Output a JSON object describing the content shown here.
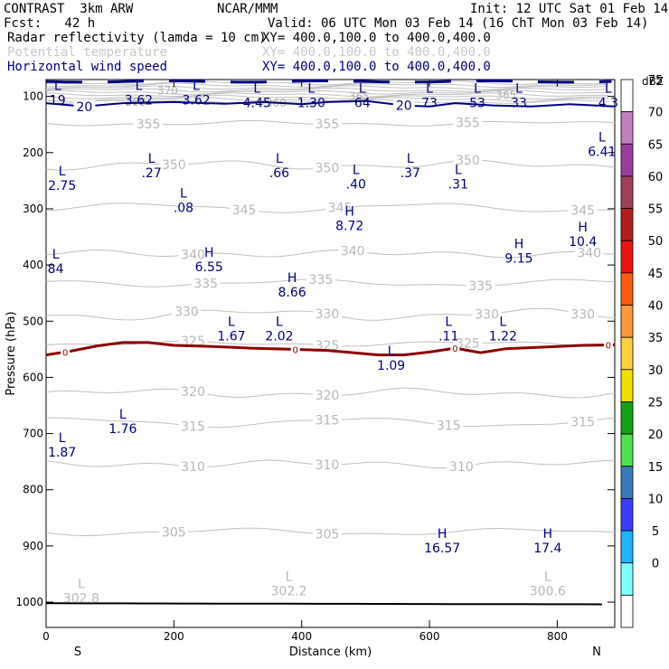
{
  "header": {
    "model": "CONTRAST  3km ARW",
    "center": "NCAR/MMM",
    "init": "Init: 12 UTC Sat 01 Feb 14",
    "fcst": "Fcst:   42 h",
    "valid": "Valid: 06 UTC Mon 03 Feb 14 (16 ChT Mon 03 Feb 14)",
    "fields": [
      {
        "name": "Radar reflectivity (lamda = 10 cm)",
        "xy": "XY= 400.0,100.0 to 400.0,400.0",
        "color": "#000000"
      },
      {
        "name": "Potential temperature",
        "xy": "XY= 400.0,100.0 to 400.0,400.0",
        "color": "#c8c8c8"
      },
      {
        "name": "Horizontal wind speed",
        "xy": "XY= 400.0,100.0 to 400.0,400.0",
        "color": "#000080"
      }
    ]
  },
  "chart_data": {
    "type": "cross-section",
    "xlabel": "Distance (km)",
    "ylabel": "Pressure (hPa)",
    "xlim": [
      0,
      890
    ],
    "ylim": [
      1045,
      70
    ],
    "xticks": [
      0,
      200,
      400,
      600,
      800
    ],
    "yticks": [
      100,
      200,
      300,
      400,
      500,
      600,
      700,
      800,
      900,
      1000
    ],
    "end_labels": {
      "left": "S",
      "right": "N"
    },
    "colorbar": {
      "unit": "dBZ",
      "levels": [
        {
          "value": "75",
          "color": "#ffffff"
        },
        {
          "value": "70",
          "color": "#c080c0"
        },
        {
          "value": "65",
          "color": "#9a3fa0"
        },
        {
          "value": "60",
          "color": "#a0405a"
        },
        {
          "value": "55",
          "color": "#b01e1e"
        },
        {
          "value": "50",
          "color": "#e81414"
        },
        {
          "value": "45",
          "color": "#ff5a14"
        },
        {
          "value": "40",
          "color": "#ff9a40"
        },
        {
          "value": "35",
          "color": "#ffd040"
        },
        {
          "value": "30",
          "color": "#f0e000"
        },
        {
          "value": "25",
          "color": "#14a014"
        },
        {
          "value": "20",
          "color": "#50e050"
        },
        {
          "value": "15",
          "color": "#3a7ab8"
        },
        {
          "value": "10",
          "color": "#3c3cff"
        },
        {
          "value": "5",
          "color": "#1eb4ff"
        },
        {
          "value": "0",
          "color": "#80ffff"
        },
        {
          "value": "",
          "color": "#ffffff"
        }
      ]
    },
    "theta_contours": [
      {
        "label": "355",
        "pressure": 148,
        "label_x": [
          160,
          440,
          660
        ]
      },
      {
        "label": "350",
        "pressure": 222,
        "label_x": [
          200,
          440,
          660
        ]
      },
      {
        "label": "345",
        "pressure": 298,
        "label_x": [
          310,
          460,
          840
        ]
      },
      {
        "label": "340",
        "pressure": 380,
        "label_x": [
          230,
          480,
          850
        ]
      },
      {
        "label": "335",
        "pressure": 432,
        "label_x": [
          250,
          430,
          680
        ]
      },
      {
        "label": "330",
        "pressure": 488,
        "label_x": [
          220,
          440,
          690,
          840
        ]
      },
      {
        "label": "325",
        "pressure": 540,
        "label_x": [
          230,
          440,
          660
        ]
      },
      {
        "label": "320",
        "pressure": 628,
        "label_x": [
          230,
          440
        ]
      },
      {
        "label": "315",
        "pressure": 680,
        "label_x": [
          230,
          440,
          630,
          840
        ]
      },
      {
        "label": "310",
        "pressure": 754,
        "label_x": [
          230,
          440,
          650
        ]
      },
      {
        "label": "305",
        "pressure": 875,
        "label_x": [
          200,
          440
        ]
      }
    ],
    "upper_theta_labels": [
      {
        "label": "360",
        "x": 140,
        "pressure": 110
      },
      {
        "label": "360",
        "x": 360,
        "pressure": 112
      },
      {
        "label": "365",
        "x": 490,
        "pressure": 100
      },
      {
        "label": "365",
        "x": 720,
        "pressure": 98
      },
      {
        "label": "370",
        "x": 190,
        "pressure": 90
      }
    ],
    "reflectivity_zero": {
      "label": "0",
      "label_x": [
        30,
        390,
        640,
        880
      ],
      "points": [
        [
          0,
          560
        ],
        [
          40,
          553
        ],
        [
          80,
          544
        ],
        [
          120,
          538
        ],
        [
          160,
          538
        ],
        [
          200,
          543
        ],
        [
          260,
          545
        ],
        [
          320,
          548
        ],
        [
          380,
          550
        ],
        [
          440,
          552
        ],
        [
          480,
          556
        ],
        [
          520,
          560
        ],
        [
          560,
          560
        ],
        [
          600,
          555
        ],
        [
          640,
          548
        ],
        [
          680,
          556
        ],
        [
          720,
          549
        ],
        [
          760,
          547
        ],
        [
          800,
          545
        ],
        [
          840,
          543
        ],
        [
          890,
          542
        ]
      ]
    },
    "wind_20_contour": {
      "label": "20",
      "label_x": [
        60,
        560
      ],
      "points": [
        [
          0,
          112
        ],
        [
          60,
          118
        ],
        [
          120,
          112
        ],
        [
          200,
          110
        ],
        [
          280,
          113
        ],
        [
          340,
          110
        ],
        [
          400,
          114
        ],
        [
          440,
          110
        ],
        [
          500,
          108
        ],
        [
          560,
          116
        ],
        [
          600,
          118
        ],
        [
          640,
          112
        ],
        [
          700,
          116
        ],
        [
          760,
          118
        ],
        [
          820,
          114
        ],
        [
          890,
          118
        ]
      ]
    },
    "extrema": [
      {
        "type": "L",
        "value": "19",
        "x": 18,
        "pressure": 98
      },
      {
        "type": "L",
        "value": "3.62",
        "x": 145,
        "pressure": 98
      },
      {
        "type": "L",
        "value": "3.62",
        "x": 235,
        "pressure": 98
      },
      {
        "type": "L",
        "value": "4.45",
        "x": 330,
        "pressure": 103
      },
      {
        "type": "L",
        "value": "1.30",
        "x": 415,
        "pressure": 103
      },
      {
        "type": "L",
        "value": "64",
        "x": 495,
        "pressure": 103
      },
      {
        "type": "L",
        "value": "73",
        "x": 600,
        "pressure": 103
      },
      {
        "type": "L",
        "value": "53",
        "x": 675,
        "pressure": 103
      },
      {
        "type": "L",
        "value": "33",
        "x": 740,
        "pressure": 103
      },
      {
        "type": "L",
        "value": "4.3",
        "x": 880,
        "pressure": 103
      },
      {
        "type": "L",
        "value": "6.41",
        "x": 870,
        "pressure": 190
      },
      {
        "type": "L",
        "value": "2.75",
        "x": 25,
        "pressure": 250
      },
      {
        "type": "L",
        "value": ".27",
        "x": 165,
        "pressure": 228
      },
      {
        "type": "L",
        "value": ".66",
        "x": 365,
        "pressure": 228
      },
      {
        "type": "L",
        "value": ".40",
        "x": 485,
        "pressure": 248
      },
      {
        "type": "L",
        "value": ".37",
        "x": 570,
        "pressure": 228
      },
      {
        "type": "L",
        "value": ".31",
        "x": 645,
        "pressure": 248
      },
      {
        "type": "L",
        "value": ".08",
        "x": 215,
        "pressure": 290
      },
      {
        "type": "H",
        "value": "8.72",
        "x": 475,
        "pressure": 322
      },
      {
        "type": "H",
        "value": "10.4",
        "x": 840,
        "pressure": 350
      },
      {
        "type": "H",
        "value": "9.15",
        "x": 740,
        "pressure": 380
      },
      {
        "type": "L",
        "value": "84",
        "x": 15,
        "pressure": 398
      },
      {
        "type": "H",
        "value": "6.55",
        "x": 255,
        "pressure": 395
      },
      {
        "type": "H",
        "value": "8.66",
        "x": 385,
        "pressure": 440
      },
      {
        "type": "L",
        "value": "1.67",
        "x": 290,
        "pressure": 518
      },
      {
        "type": "L",
        "value": "2.02",
        "x": 365,
        "pressure": 518
      },
      {
        "type": "L",
        "value": ".11",
        "x": 630,
        "pressure": 518
      },
      {
        "type": "L",
        "value": "1.22",
        "x": 715,
        "pressure": 518
      },
      {
        "type": "L",
        "value": "1.09",
        "x": 540,
        "pressure": 570
      },
      {
        "type": "L",
        "value": "1.76",
        "x": 120,
        "pressure": 683
      },
      {
        "type": "L",
        "value": "1.87",
        "x": 25,
        "pressure": 725
      },
      {
        "type": "H",
        "value": "16.57",
        "x": 620,
        "pressure": 895
      },
      {
        "type": "H",
        "value": "17.4",
        "x": 785,
        "pressure": 895
      }
    ],
    "surface_theta": [
      {
        "type": "L",
        "value": "302.8",
        "x": 55,
        "pressure": 985
      },
      {
        "type": "L",
        "value": "302.2",
        "x": 380,
        "pressure": 972
      },
      {
        "type": "L",
        "value": "300.6",
        "x": 785,
        "pressure": 972
      }
    ],
    "ground_pressure": 1002
  }
}
